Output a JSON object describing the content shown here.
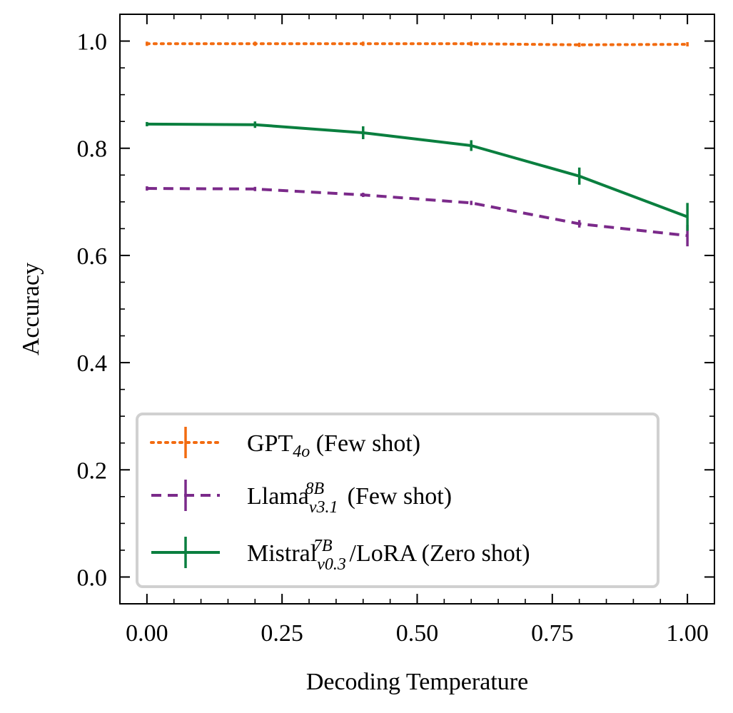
{
  "chart_data": {
    "type": "line",
    "xlabel": "Decoding Temperature",
    "ylabel": "Accuracy",
    "xlim": [
      -0.05,
      1.05
    ],
    "ylim": [
      -0.05,
      1.05
    ],
    "xticks": [
      0.0,
      0.25,
      0.5,
      0.75,
      1.0
    ],
    "xtick_labels": [
      "0.00",
      "0.25",
      "0.50",
      "0.75",
      "1.00"
    ],
    "yticks": [
      0.0,
      0.2,
      0.4,
      0.6,
      0.8,
      1.0
    ],
    "ytick_labels": [
      "0.0",
      "0.2",
      "0.4",
      "0.6",
      "0.8",
      "1.0"
    ],
    "grid": false,
    "legend_position": "lower-left",
    "x": [
      0.0,
      0.2,
      0.4,
      0.6,
      0.8,
      1.0
    ],
    "series": [
      {
        "label_main": "GPT",
        "label_sub": "4o",
        "label_sup": "",
        "label_suffix": " (Few shot)",
        "color": "#f26b10",
        "style": "dotted",
        "values": [
          0.995,
          0.995,
          0.995,
          0.995,
          0.993,
          0.994
        ],
        "errors": [
          0.001,
          0.001,
          0.001,
          0.001,
          0.003,
          0.003
        ]
      },
      {
        "label_main": "Llama",
        "label_sub": "v3.1",
        "label_sup": "8B",
        "label_suffix": " (Few shot)",
        "color": "#7b2a8a",
        "style": "dashed",
        "values": [
          0.725,
          0.724,
          0.713,
          0.698,
          0.659,
          0.637
        ],
        "errors": [
          0.002,
          0.004,
          0.003,
          0.003,
          0.007,
          0.02
        ]
      },
      {
        "label_main": "Mistral",
        "label_sub": "v0.3",
        "label_sup": "7B",
        "label_suffix": "/LoRA (Zero shot)",
        "color": "#0a7f3f",
        "style": "solid",
        "values": [
          0.845,
          0.844,
          0.829,
          0.805,
          0.748,
          0.672
        ],
        "errors": [
          0.002,
          0.006,
          0.012,
          0.01,
          0.016,
          0.026
        ]
      }
    ]
  }
}
